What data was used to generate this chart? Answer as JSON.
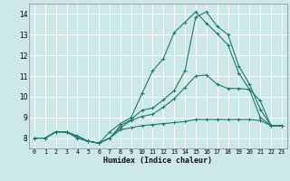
{
  "xlabel": "Humidex (Indice chaleur)",
  "bg_color": "#cde8e8",
  "grid_color": "#ffffff",
  "line_color": "#1a7a6e",
  "xlim": [
    -0.5,
    23.5
  ],
  "ylim": [
    7.5,
    14.5
  ],
  "xticks": [
    0,
    1,
    2,
    3,
    4,
    5,
    6,
    7,
    8,
    9,
    10,
    11,
    12,
    13,
    14,
    15,
    16,
    17,
    18,
    19,
    20,
    21,
    22,
    23
  ],
  "yticks": [
    8,
    9,
    10,
    11,
    12,
    13,
    14
  ],
  "line1_x": [
    0,
    1,
    2,
    3,
    4,
    5,
    6,
    7,
    8,
    9,
    10,
    11,
    12,
    13,
    14,
    15,
    16,
    17,
    18,
    19,
    20,
    21,
    22,
    23
  ],
  "line1_y": [
    8.0,
    8.0,
    8.3,
    8.3,
    8.1,
    7.85,
    7.75,
    8.3,
    8.7,
    9.0,
    10.15,
    11.25,
    11.85,
    13.1,
    13.6,
    14.1,
    13.55,
    13.05,
    12.5,
    11.15,
    10.35,
    9.8,
    8.6,
    8.6
  ],
  "line2_x": [
    0,
    1,
    2,
    3,
    4,
    5,
    6,
    7,
    8,
    9,
    10,
    11,
    12,
    13,
    14,
    15,
    16,
    17,
    18,
    19,
    20,
    21,
    22,
    23
  ],
  "line2_y": [
    8.0,
    8.0,
    8.3,
    8.3,
    8.0,
    7.85,
    7.75,
    8.0,
    8.6,
    8.9,
    9.35,
    9.45,
    9.85,
    10.3,
    11.25,
    13.85,
    14.1,
    13.4,
    13.0,
    11.5,
    10.6,
    9.4,
    8.6,
    8.6
  ],
  "line3_x": [
    0,
    1,
    2,
    3,
    4,
    5,
    6,
    7,
    8,
    9,
    10,
    11,
    12,
    13,
    14,
    15,
    16,
    17,
    18,
    19,
    20,
    21,
    22,
    23
  ],
  "line3_y": [
    8.0,
    8.0,
    8.3,
    8.3,
    8.0,
    7.85,
    7.75,
    8.0,
    8.5,
    8.85,
    9.05,
    9.15,
    9.5,
    9.9,
    10.45,
    11.0,
    11.05,
    10.6,
    10.4,
    10.4,
    10.35,
    9.0,
    8.6,
    8.6
  ],
  "line4_x": [
    0,
    1,
    2,
    3,
    4,
    5,
    6,
    7,
    8,
    9,
    10,
    11,
    12,
    13,
    14,
    15,
    16,
    17,
    18,
    19,
    20,
    21,
    22,
    23
  ],
  "line4_y": [
    8.0,
    8.0,
    8.3,
    8.3,
    8.1,
    7.85,
    7.75,
    8.0,
    8.4,
    8.5,
    8.6,
    8.65,
    8.7,
    8.75,
    8.8,
    8.9,
    8.9,
    8.9,
    8.9,
    8.9,
    8.9,
    8.85,
    8.6,
    8.6
  ]
}
